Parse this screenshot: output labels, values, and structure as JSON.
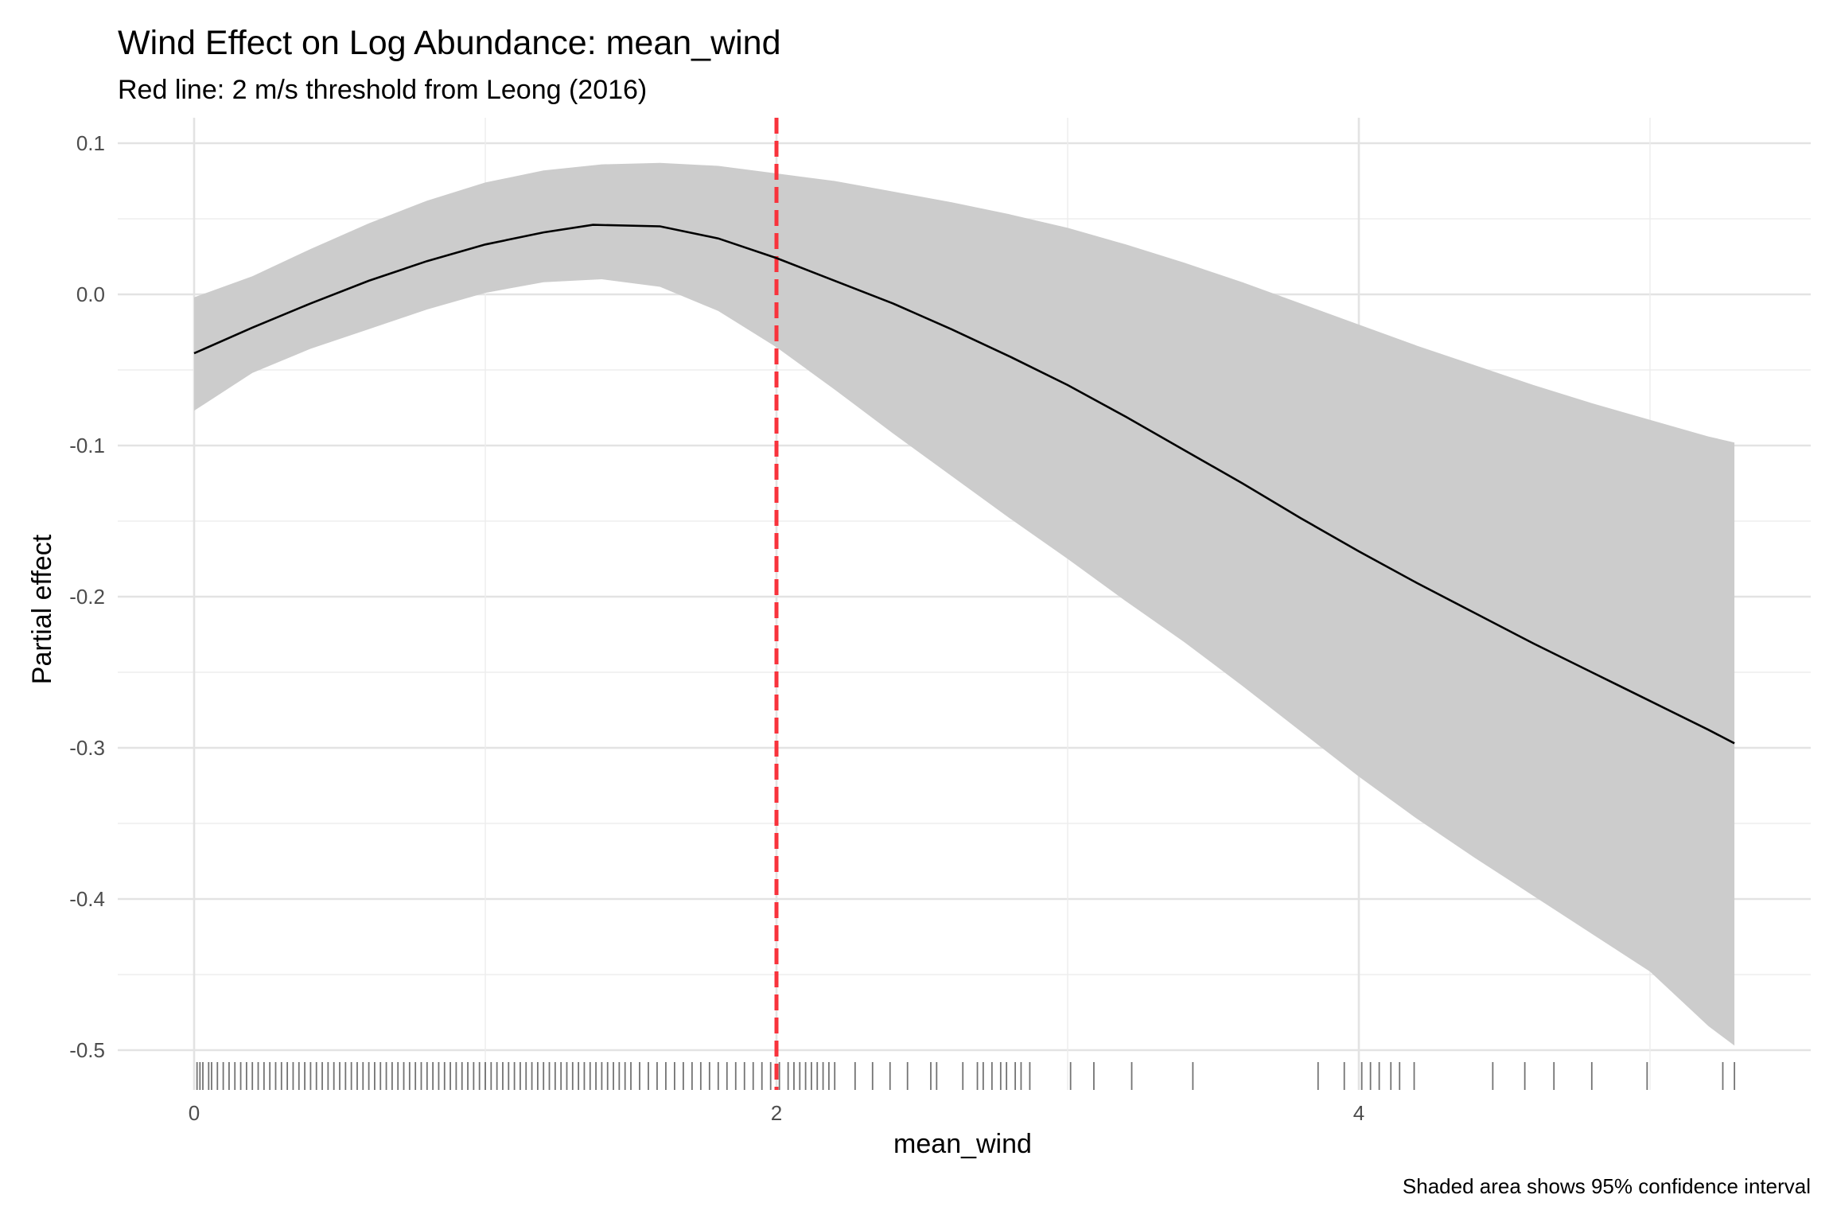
{
  "chart_data": {
    "type": "line",
    "title": "Wind Effect on Log Abundance: mean_wind",
    "subtitle": "Red line: 2 m/s threshold from Leong (2016)",
    "xlabel": "mean_wind",
    "ylabel": "Partial effect",
    "caption": "Shaded area shows 95% confidence interval",
    "xlim": [
      -0.26,
      5.5
    ],
    "ylim": [
      -0.525,
      0.11
    ],
    "x_ticks": [
      0,
      2,
      4
    ],
    "x_tick_labels": [
      "0",
      "2",
      "4"
    ],
    "y_ticks": [
      0.1,
      0.0,
      -0.1,
      -0.2,
      -0.3,
      -0.4,
      -0.5
    ],
    "y_tick_labels": [
      "0.1",
      "0.0",
      "-0.1",
      "-0.2",
      "-0.3",
      "-0.4",
      "-0.5"
    ],
    "grid": true,
    "threshold": {
      "x": 2,
      "color": "#f8333c",
      "style": "dashed"
    },
    "colors": {
      "line": "#000000",
      "ribbon": "#cccccc",
      "threshold": "#f8333c",
      "rug": "#000000"
    },
    "series": [
      {
        "name": "fit",
        "x": [
          0,
          0.2,
          0.4,
          0.6,
          0.8,
          1.0,
          1.2,
          1.37,
          1.6,
          1.8,
          2.0,
          2.2,
          2.4,
          2.6,
          2.8,
          3.0,
          3.2,
          3.4,
          3.6,
          3.8,
          4.0,
          4.2,
          4.4,
          4.6,
          4.8,
          5.0,
          5.2,
          5.29
        ],
        "y": [
          -0.039,
          -0.022,
          -0.006,
          0.009,
          0.022,
          0.033,
          0.041,
          0.046,
          0.045,
          0.037,
          0.024,
          0.009,
          -0.006,
          -0.023,
          -0.041,
          -0.06,
          -0.081,
          -0.103,
          -0.125,
          -0.148,
          -0.17,
          -0.191,
          -0.211,
          -0.231,
          -0.25,
          -0.269,
          -0.288,
          -0.297
        ]
      },
      {
        "name": "ci_upper",
        "x": [
          0,
          0.2,
          0.4,
          0.6,
          0.8,
          1.0,
          1.2,
          1.4,
          1.6,
          1.8,
          2.0,
          2.2,
          2.4,
          2.6,
          2.8,
          3.0,
          3.2,
          3.4,
          3.6,
          3.8,
          4.0,
          4.2,
          4.4,
          4.6,
          4.8,
          5.0,
          5.2,
          5.29
        ],
        "y": [
          -0.002,
          0.012,
          0.03,
          0.047,
          0.062,
          0.074,
          0.082,
          0.086,
          0.087,
          0.085,
          0.08,
          0.075,
          0.068,
          0.061,
          0.053,
          0.044,
          0.033,
          0.021,
          0.008,
          -0.006,
          -0.02,
          -0.034,
          -0.047,
          -0.06,
          -0.072,
          -0.083,
          -0.094,
          -0.098
        ]
      },
      {
        "name": "ci_lower",
        "x": [
          0,
          0.2,
          0.4,
          0.6,
          0.8,
          1.0,
          1.2,
          1.4,
          1.6,
          1.8,
          2.0,
          2.2,
          2.4,
          2.6,
          2.8,
          3.0,
          3.2,
          3.4,
          3.6,
          3.8,
          4.0,
          4.2,
          4.4,
          4.6,
          4.8,
          5.0,
          5.2,
          5.29
        ],
        "y": [
          -0.077,
          -0.052,
          -0.036,
          -0.023,
          -0.01,
          0.001,
          0.008,
          0.01,
          0.005,
          -0.011,
          -0.035,
          -0.063,
          -0.092,
          -0.12,
          -0.148,
          -0.175,
          -0.203,
          -0.23,
          -0.259,
          -0.289,
          -0.319,
          -0.347,
          -0.373,
          -0.398,
          -0.423,
          -0.448,
          -0.484,
          -0.497
        ]
      }
    ],
    "rug": [
      0.01,
      0.02,
      0.03,
      0.05,
      0.06,
      0.08,
      0.1,
      0.12,
      0.14,
      0.16,
      0.18,
      0.2,
      0.22,
      0.24,
      0.26,
      0.28,
      0.3,
      0.32,
      0.34,
      0.36,
      0.38,
      0.4,
      0.42,
      0.44,
      0.46,
      0.48,
      0.5,
      0.52,
      0.54,
      0.56,
      0.58,
      0.6,
      0.62,
      0.64,
      0.66,
      0.68,
      0.7,
      0.72,
      0.74,
      0.76,
      0.78,
      0.8,
      0.82,
      0.84,
      0.86,
      0.88,
      0.9,
      0.92,
      0.94,
      0.96,
      0.98,
      1.0,
      1.02,
      1.04,
      1.06,
      1.08,
      1.1,
      1.12,
      1.14,
      1.16,
      1.18,
      1.2,
      1.22,
      1.24,
      1.26,
      1.28,
      1.3,
      1.32,
      1.34,
      1.36,
      1.38,
      1.4,
      1.42,
      1.44,
      1.46,
      1.48,
      1.5,
      1.53,
      1.56,
      1.59,
      1.62,
      1.65,
      1.68,
      1.71,
      1.74,
      1.77,
      1.8,
      1.83,
      1.86,
      1.89,
      1.92,
      1.95,
      1.98,
      2.01,
      2.04,
      2.06,
      2.08,
      2.1,
      2.12,
      2.14,
      2.16,
      2.18,
      2.2,
      2.27,
      2.33,
      2.39,
      2.45,
      2.53,
      2.55,
      2.64,
      2.69,
      2.71,
      2.74,
      2.77,
      2.79,
      2.82,
      2.84,
      2.87,
      3.01,
      3.09,
      3.22,
      3.43,
      3.86,
      3.95,
      4.01,
      4.04,
      4.07,
      4.11,
      4.14,
      4.19,
      4.46,
      4.57,
      4.67,
      4.8,
      4.99,
      5.25,
      5.29
    ]
  }
}
